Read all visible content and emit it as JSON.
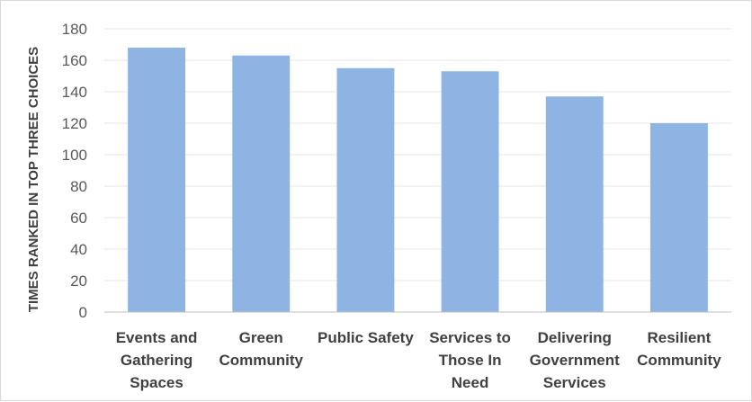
{
  "chart_data": {
    "type": "bar",
    "title": "",
    "xlabel": "",
    "ylabel": "TIMES RANKED IN TOP THREE CHOICES",
    "categories": [
      [
        "Events and",
        "Gathering",
        "Spaces"
      ],
      [
        "Green",
        "Community"
      ],
      [
        "Public Safety"
      ],
      [
        "Services to",
        "Those In",
        "Need"
      ],
      [
        "Delivering",
        "Government",
        "Services"
      ],
      [
        "Resilient",
        "Community"
      ]
    ],
    "values": [
      168,
      163,
      155,
      153,
      137,
      120
    ],
    "ylim": [
      0,
      180
    ],
    "yticks": [
      0,
      20,
      40,
      60,
      80,
      100,
      120,
      140,
      160,
      180
    ],
    "grid": true,
    "legend": "none",
    "bar_color": "#8db4e2"
  }
}
